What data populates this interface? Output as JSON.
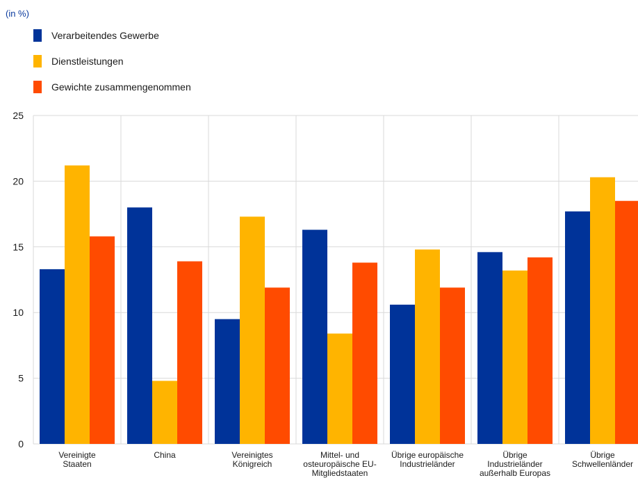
{
  "unit_label": "(in %)",
  "colors": {
    "series_0": "#003399",
    "series_1": "#ffb400",
    "series_2": "#ff4b00",
    "grid": "#d9d9d9"
  },
  "chart_data": {
    "type": "bar",
    "title": "",
    "xlabel": "",
    "ylabel": "",
    "ylim": [
      0,
      25
    ],
    "yticks": [
      0,
      5,
      10,
      15,
      20,
      25
    ],
    "grid": true,
    "legend_position": "top-left",
    "categories": [
      [
        "Vereinigte",
        "Staaten"
      ],
      [
        "China"
      ],
      [
        "Vereinigtes",
        "Königreich"
      ],
      [
        "Mittel- und",
        "osteuropäische EU-",
        "Mitgliedstaaten"
      ],
      [
        "Übrige europäische",
        "Industrieländer"
      ],
      [
        "Übrige",
        "Industrieländer",
        "außerhalb Europas"
      ],
      [
        "Übrige",
        "Schwellenländer"
      ]
    ],
    "series": [
      {
        "name": "Verarbeitendes Gewerbe",
        "values": [
          13.3,
          18.0,
          9.5,
          16.3,
          10.6,
          14.6,
          17.7
        ]
      },
      {
        "name": "Dienstleistungen",
        "values": [
          21.2,
          4.8,
          17.3,
          8.4,
          14.8,
          13.2,
          20.3
        ]
      },
      {
        "name": "Gewichte zusammengenommen",
        "values": [
          15.8,
          13.9,
          11.9,
          13.8,
          11.9,
          14.2,
          18.5
        ]
      }
    ]
  }
}
